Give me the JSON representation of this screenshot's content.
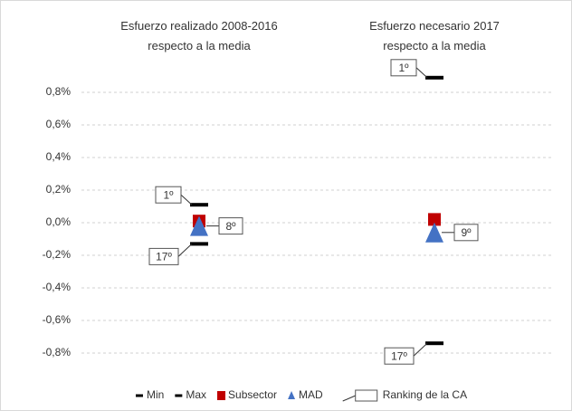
{
  "chart_data": {
    "type": "range-marker",
    "categories": [
      "Esfuerzo realizado 2008-2016\nrespecto a la media",
      "Esfuerzo necesario 2017\nrespecto a la media"
    ],
    "series": [
      {
        "name": "Min",
        "color": "#000000",
        "marker": "dash",
        "values": [
          -0.13,
          -0.74
        ],
        "rank_labels": [
          "17º",
          "17º"
        ]
      },
      {
        "name": "Max",
        "color": "#000000",
        "marker": "dash",
        "values": [
          0.11,
          0.89
        ],
        "rank_labels": [
          "1º",
          "1º"
        ]
      },
      {
        "name": "Subsector",
        "color": "#c00000",
        "marker": "square",
        "values": [
          0.01,
          0.02
        ]
      },
      {
        "name": "MAD",
        "color": "#4472c4",
        "marker": "triangle",
        "values": [
          -0.02,
          -0.06
        ],
        "rank_labels": [
          "8º",
          "9º"
        ]
      }
    ],
    "ranking_label": "Ranking de la CA",
    "ylim": [
      -0.9,
      0.9
    ],
    "yticks": [
      {
        "value": 0.8,
        "label": "0,8%"
      },
      {
        "value": 0.6,
        "label": "0,6%"
      },
      {
        "value": 0.4,
        "label": "0,4%"
      },
      {
        "value": 0.2,
        "label": "0,2%"
      },
      {
        "value": 0,
        "label": "0,0%"
      },
      {
        "value": -0.2,
        "label": "-0,2%"
      },
      {
        "value": -0.4,
        "label": "-0,4%"
      },
      {
        "value": -0.6,
        "label": "-0,6%"
      },
      {
        "value": -0.8,
        "label": "-0,8%"
      }
    ],
    "grid": true,
    "legend": "bottom"
  }
}
